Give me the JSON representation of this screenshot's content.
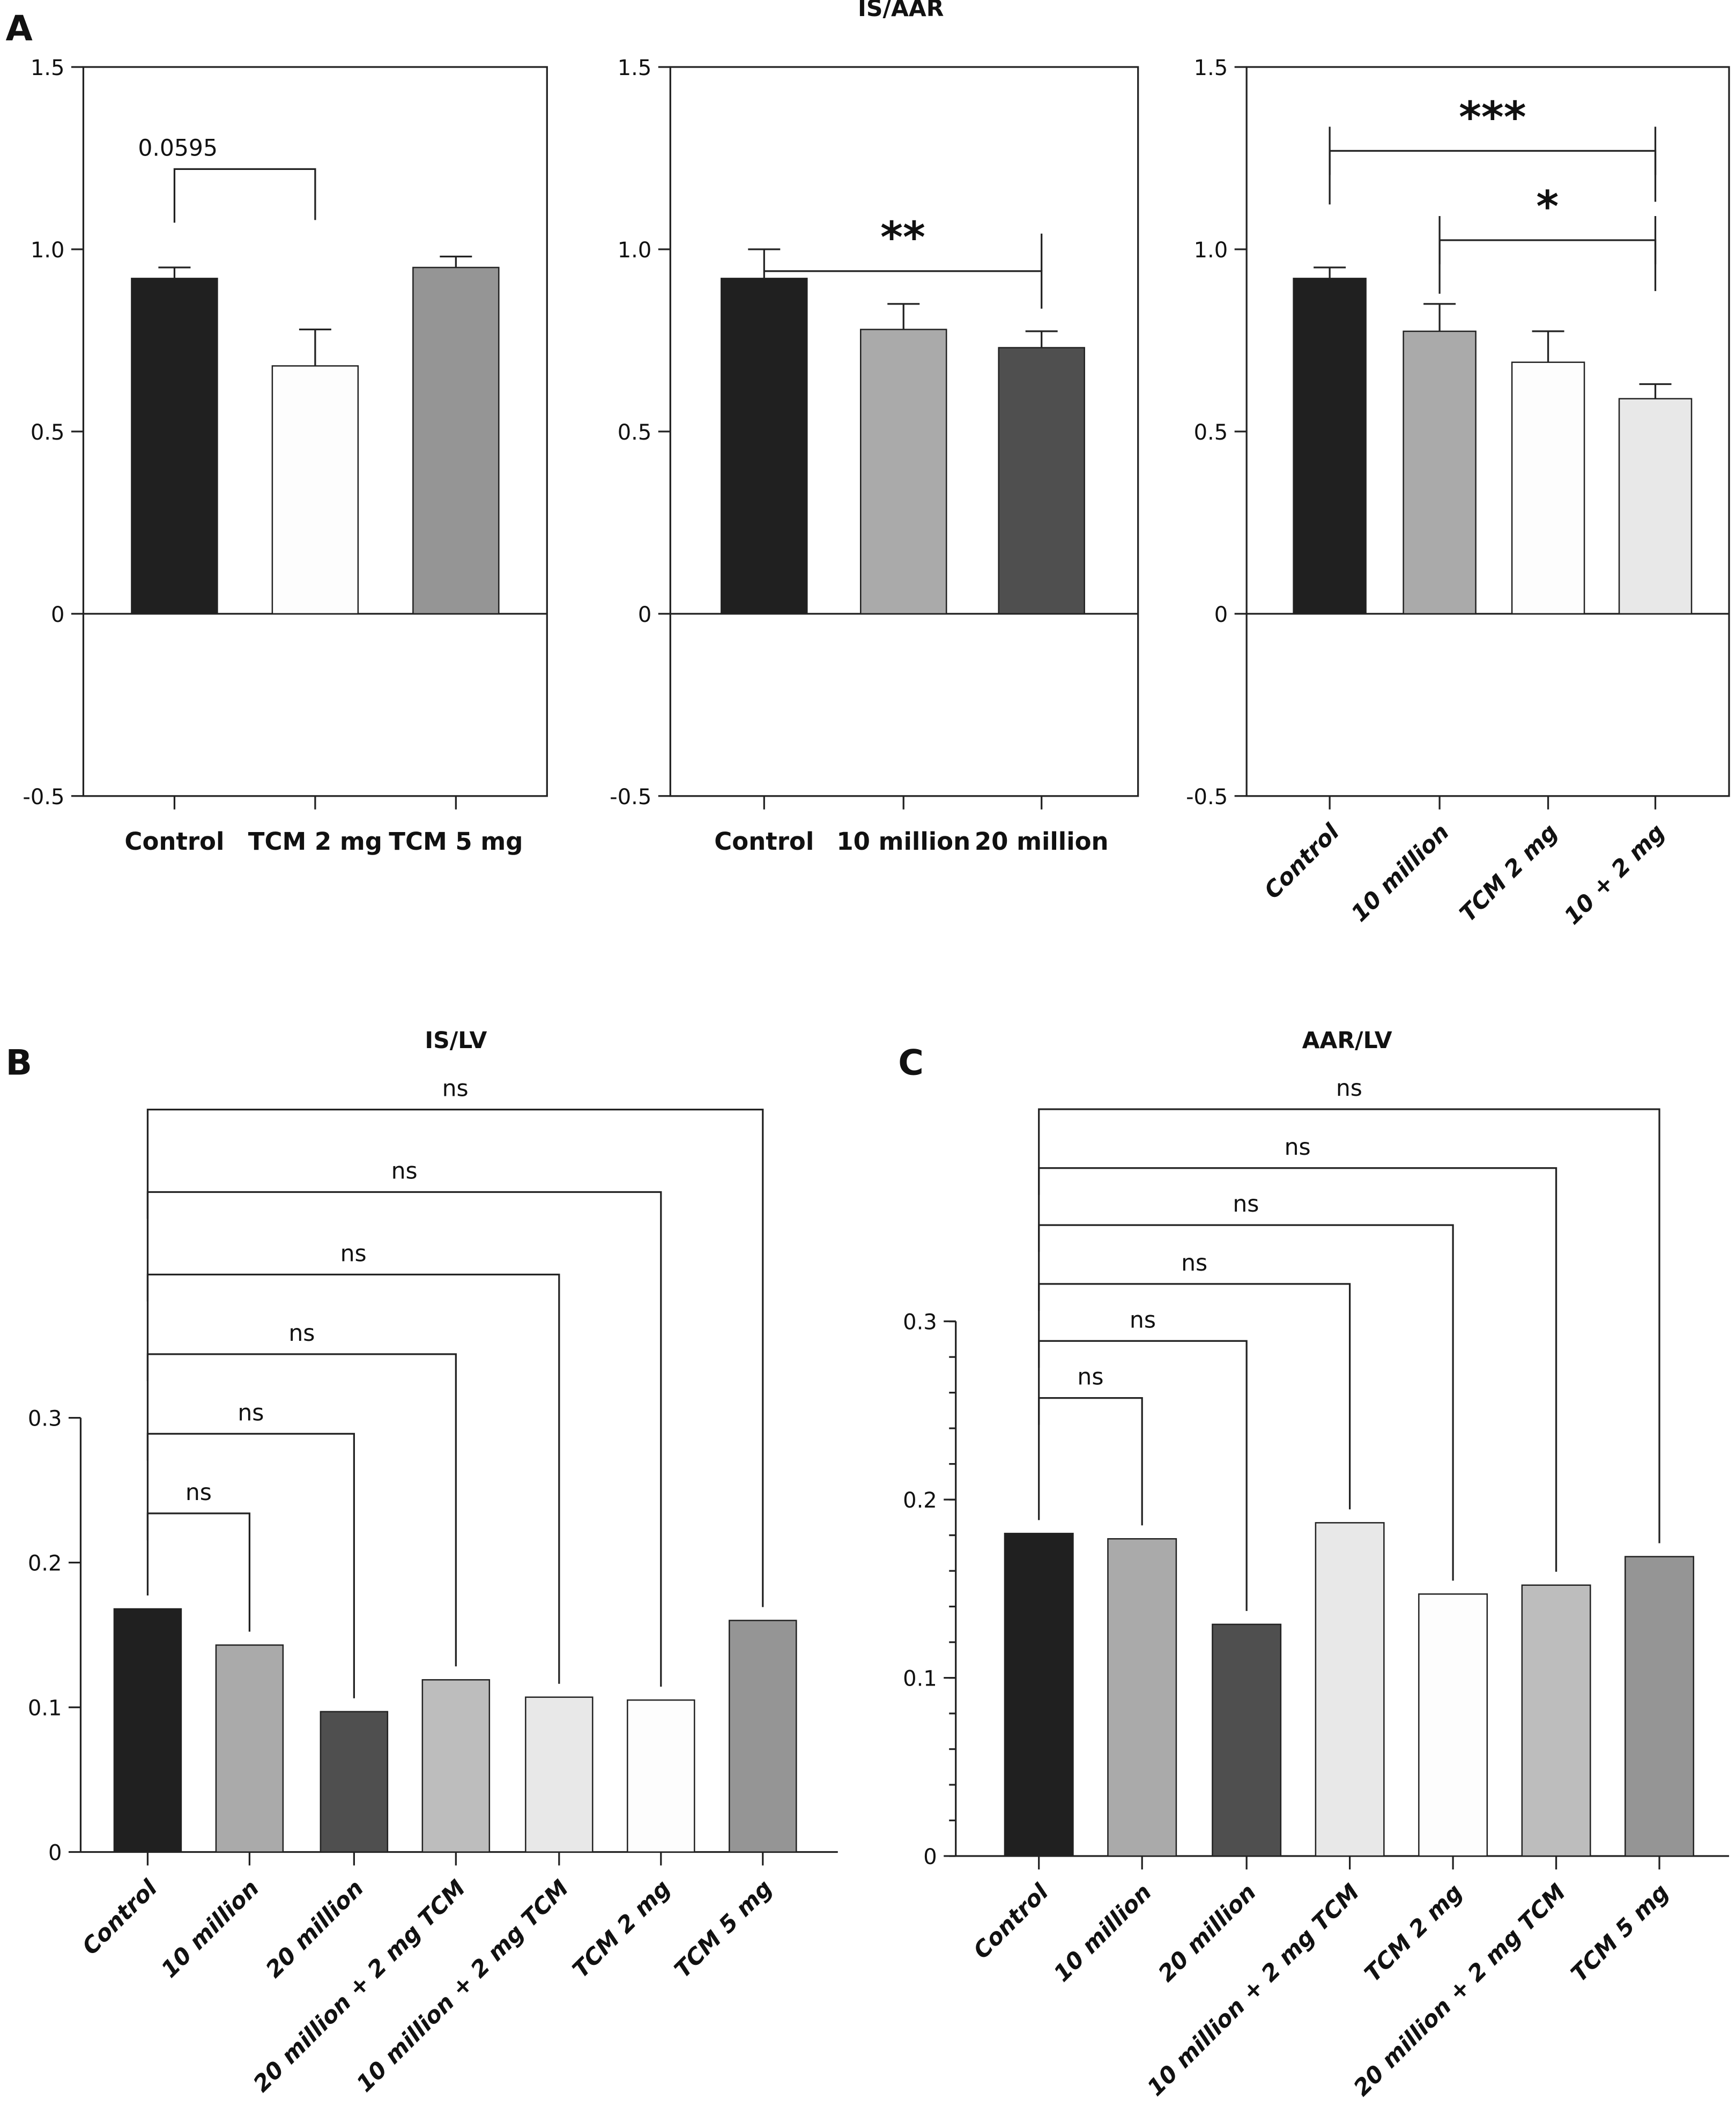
{
  "panel_labels": {
    "A": "A",
    "B": "B",
    "C": "C"
  },
  "colors": {
    "black": "#202020",
    "white": "#fdfdfd",
    "gray": "#959595",
    "lightgray": "#aaaaaa",
    "darkgray": "#4f4f4f",
    "verylight": "#e8e8e8",
    "silver": "#bdbdbd"
  },
  "chart_data": [
    {
      "type": "bar",
      "panel": "A",
      "title": "IS/AAR",
      "ylim": [
        -0.5,
        1.5
      ],
      "yticks": [
        "-0.5",
        "0",
        "0.5",
        "1.0",
        "1.5"
      ],
      "ytick_values": [
        -0.5,
        0,
        0.5,
        1.0,
        1.5
      ],
      "categories": [
        "Control",
        "TCM 2 mg",
        "TCM 5 mg"
      ],
      "values": [
        0.92,
        0.68,
        0.95
      ],
      "error_upper": [
        0.95,
        0.78,
        0.98
      ],
      "bar_colors": [
        "#202020",
        "#fdfdfd",
        "#959595"
      ],
      "brackets": [
        {
          "from": 0,
          "to": 1,
          "y": 1.22,
          "label": "0.0595"
        }
      ],
      "label_rotation": 0,
      "box": true
    },
    {
      "type": "bar",
      "panel": "A",
      "ylim": [
        -0.5,
        1.5
      ],
      "yticks": [
        "-0.5",
        "0",
        "0.5",
        "1.0",
        "1.5"
      ],
      "ytick_values": [
        -0.5,
        0,
        0.5,
        1.0,
        1.5
      ],
      "categories": [
        "Control",
        "10 million",
        "20 million"
      ],
      "values": [
        0.92,
        0.78,
        0.73
      ],
      "error_upper": [
        1.0,
        0.85,
        0.775
      ],
      "bar_colors": [
        "#202020",
        "#aaaaaa",
        "#4f4f4f"
      ],
      "brackets": [
        {
          "from": 0,
          "to": 2,
          "y": 0.94,
          "label": "**"
        }
      ],
      "label_rotation": 0,
      "box": true
    },
    {
      "type": "bar",
      "panel": "A",
      "ylim": [
        -0.5,
        1.5
      ],
      "yticks": [
        "-0.5",
        "0",
        "0.5",
        "1.0",
        "1.5"
      ],
      "ytick_values": [
        -0.5,
        0,
        0.5,
        1.0,
        1.5
      ],
      "categories": [
        "Control",
        "10 million",
        "TCM 2 mg",
        "10 + 2 mg"
      ],
      "values": [
        0.92,
        0.775,
        0.69,
        0.59
      ],
      "error_upper": [
        0.95,
        0.85,
        0.775,
        0.63
      ],
      "bar_colors": [
        "#202020",
        "#aaaaaa",
        "#fdfdfd",
        "#e8e8e8"
      ],
      "brackets": [
        {
          "from": 0,
          "to": 3,
          "y": 1.27,
          "label": "***"
        },
        {
          "from": 1,
          "to": 3,
          "y": 1.025,
          "label": "*"
        }
      ],
      "label_rotation": -45,
      "box": true
    },
    {
      "type": "bar",
      "panel": "B",
      "title": "IS/LV",
      "ylim": [
        0,
        0.3
      ],
      "yticks": [
        "0",
        "0.1",
        "0.2",
        "0.3"
      ],
      "ytick_values": [
        0,
        0.1,
        0.2,
        0.3
      ],
      "categories": [
        "Control",
        "10 million",
        "20 million",
        "20 million + 2 mg TCM",
        "10 million + 2 mg TCM",
        "TCM 2 mg",
        "TCM 5 mg"
      ],
      "values": [
        0.168,
        0.143,
        0.097,
        0.119,
        0.107,
        0.105,
        0.16
      ],
      "bar_colors": [
        "#202020",
        "#aaaaaa",
        "#4f4f4f",
        "#bdbdbd",
        "#e8e8e8",
        "#fdfdfd",
        "#959595"
      ],
      "brackets": [
        {
          "from": 0,
          "to": 1,
          "y": 0.234,
          "label": "ns"
        },
        {
          "from": 0,
          "to": 2,
          "y": 0.289,
          "label": "ns"
        },
        {
          "from": 0,
          "to": 3,
          "y": 0.344,
          "label": "ns"
        },
        {
          "from": 0,
          "to": 4,
          "y": 0.399,
          "label": "ns"
        },
        {
          "from": 0,
          "to": 5,
          "y": 0.456,
          "label": "ns"
        },
        {
          "from": 0,
          "to": 6,
          "y": 0.513,
          "label": "ns"
        }
      ],
      "label_rotation": -45,
      "box": false
    },
    {
      "type": "bar",
      "panel": "C",
      "title": "AAR/LV",
      "ylim": [
        0,
        0.3
      ],
      "yticks": [
        "0",
        "0.1",
        "0.2",
        "0.3"
      ],
      "ytick_values": [
        0,
        0.1,
        0.2,
        0.3
      ],
      "categories": [
        "Control",
        "10 million",
        "20 million",
        "10 million + 2 mg TCM",
        "TCM 2 mg",
        "20 million + 2 mg TCM",
        "TCM 5 mg"
      ],
      "values": [
        0.181,
        0.178,
        0.13,
        0.187,
        0.147,
        0.152,
        0.168
      ],
      "bar_colors": [
        "#202020",
        "#aaaaaa",
        "#4f4f4f",
        "#e8e8e8",
        "#fdfdfd",
        "#bdbdbd",
        "#959595"
      ],
      "brackets": [
        {
          "from": 0,
          "to": 1,
          "y": 0.257,
          "label": "ns"
        },
        {
          "from": 0,
          "to": 2,
          "y": 0.289,
          "label": "ns"
        },
        {
          "from": 0,
          "to": 3,
          "y": 0.321,
          "label": "ns"
        },
        {
          "from": 0,
          "to": 4,
          "y": 0.354,
          "label": "ns"
        },
        {
          "from": 0,
          "to": 5,
          "y": 0.386,
          "label": "ns"
        },
        {
          "from": 0,
          "to": 6,
          "y": 0.419,
          "label": "ns"
        }
      ],
      "label_rotation": -45,
      "box": false,
      "minor_ticks": true
    }
  ]
}
